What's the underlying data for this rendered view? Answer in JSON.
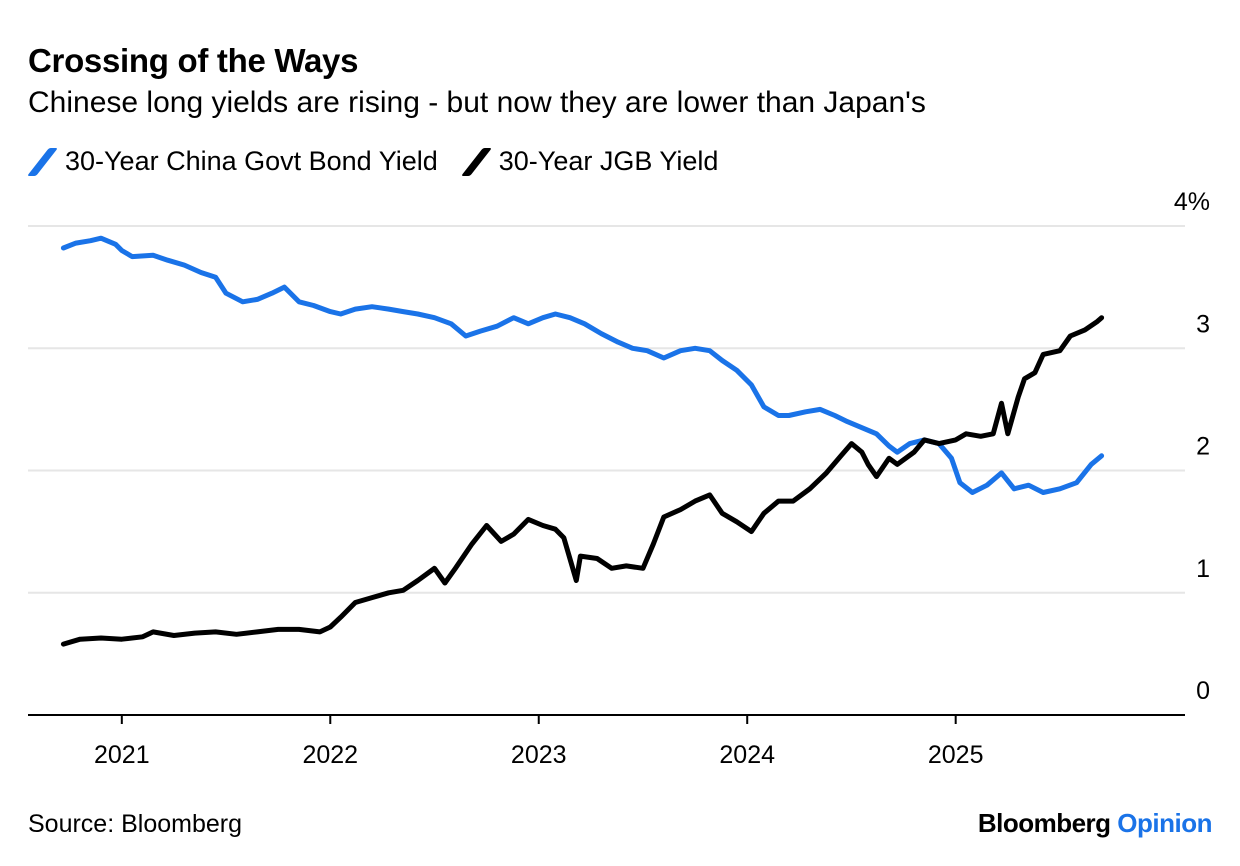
{
  "header": {
    "title": "Crossing of the Ways",
    "subtitle": "Chinese long yields are rising - but now they are lower than Japan's"
  },
  "legend": [
    {
      "label": "30-Year China Govt Bond Yield",
      "color": "#1a73e8"
    },
    {
      "label": "30-Year JGB Yield",
      "color": "#000000"
    }
  ],
  "footer": {
    "source": "Source: Bloomberg",
    "brand_main": "Bloomberg",
    "brand_accent": "Opinion"
  },
  "chart_data": {
    "type": "line",
    "title": "Crossing of the Ways",
    "subtitle": "Chinese long yields are rising - but now they are lower than Japan's",
    "x_range": [
      2020.55,
      2026.1
    ],
    "y_range": [
      0,
      4
    ],
    "y_axis_side": "right",
    "y_ticks": [
      0,
      1,
      2,
      3,
      4
    ],
    "y_tick_labels": [
      "0",
      "1",
      "2",
      "3",
      "4%"
    ],
    "x_ticks": [
      2021,
      2022,
      2023,
      2024,
      2025
    ],
    "x_tick_labels": [
      "2021",
      "2022",
      "2023",
      "2024",
      "2025"
    ],
    "grid": "horizontal",
    "legend_position": "top-left",
    "series": [
      {
        "name": "30-Year China Govt Bond Yield",
        "color": "#1a73e8",
        "x": [
          2020.72,
          2020.78,
          2020.85,
          2020.9,
          2020.97,
          2021.0,
          2021.05,
          2021.15,
          2021.22,
          2021.3,
          2021.38,
          2021.45,
          2021.5,
          2021.58,
          2021.65,
          2021.72,
          2021.78,
          2021.85,
          2021.92,
          2022.0,
          2022.05,
          2022.12,
          2022.2,
          2022.28,
          2022.35,
          2022.42,
          2022.5,
          2022.58,
          2022.65,
          2022.72,
          2022.8,
          2022.88,
          2022.95,
          2023.02,
          2023.08,
          2023.15,
          2023.22,
          2023.3,
          2023.38,
          2023.45,
          2023.52,
          2023.6,
          2023.68,
          2023.75,
          2023.82,
          2023.88,
          2023.95,
          2024.02,
          2024.08,
          2024.15,
          2024.2,
          2024.28,
          2024.35,
          2024.42,
          2024.48,
          2024.55,
          2024.62,
          2024.68,
          2024.72,
          2024.78,
          2024.85,
          2024.92,
          2024.98,
          2025.02,
          2025.08,
          2025.15,
          2025.22,
          2025.28,
          2025.35,
          2025.42,
          2025.5,
          2025.58,
          2025.65,
          2025.7
        ],
        "values": [
          3.82,
          3.86,
          3.88,
          3.9,
          3.85,
          3.8,
          3.75,
          3.76,
          3.72,
          3.68,
          3.62,
          3.58,
          3.45,
          3.38,
          3.4,
          3.45,
          3.5,
          3.38,
          3.35,
          3.3,
          3.28,
          3.32,
          3.34,
          3.32,
          3.3,
          3.28,
          3.25,
          3.2,
          3.1,
          3.14,
          3.18,
          3.25,
          3.2,
          3.25,
          3.28,
          3.25,
          3.2,
          3.12,
          3.05,
          3.0,
          2.98,
          2.92,
          2.98,
          3.0,
          2.98,
          2.9,
          2.82,
          2.7,
          2.52,
          2.45,
          2.45,
          2.48,
          2.5,
          2.45,
          2.4,
          2.35,
          2.3,
          2.2,
          2.15,
          2.22,
          2.25,
          2.22,
          2.1,
          1.9,
          1.82,
          1.88,
          1.98,
          1.85,
          1.88,
          1.82,
          1.85,
          1.9,
          2.05,
          2.12
        ]
      },
      {
        "name": "30-Year JGB Yield",
        "color": "#000000",
        "x": [
          2020.72,
          2020.8,
          2020.9,
          2021.0,
          2021.1,
          2021.15,
          2021.25,
          2021.35,
          2021.45,
          2021.55,
          2021.65,
          2021.75,
          2021.85,
          2021.95,
          2022.0,
          2022.05,
          2022.12,
          2022.2,
          2022.28,
          2022.35,
          2022.42,
          2022.5,
          2022.55,
          2022.6,
          2022.68,
          2022.75,
          2022.82,
          2022.88,
          2022.95,
          2023.02,
          2023.08,
          2023.12,
          2023.18,
          2023.2,
          2023.28,
          2023.35,
          2023.42,
          2023.5,
          2023.55,
          2023.6,
          2023.68,
          2023.75,
          2023.82,
          2023.88,
          2023.95,
          2024.02,
          2024.08,
          2024.15,
          2024.22,
          2024.3,
          2024.38,
          2024.45,
          2024.5,
          2024.55,
          2024.58,
          2024.62,
          2024.68,
          2024.72,
          2024.8,
          2024.85,
          2024.92,
          2025.0,
          2025.05,
          2025.12,
          2025.18,
          2025.22,
          2025.25,
          2025.3,
          2025.33,
          2025.38,
          2025.42,
          2025.5,
          2025.55,
          2025.62,
          2025.68,
          2025.7
        ],
        "values": [
          0.58,
          0.62,
          0.63,
          0.62,
          0.64,
          0.68,
          0.65,
          0.67,
          0.68,
          0.66,
          0.68,
          0.7,
          0.7,
          0.68,
          0.72,
          0.8,
          0.92,
          0.96,
          1.0,
          1.02,
          1.1,
          1.2,
          1.08,
          1.2,
          1.4,
          1.55,
          1.42,
          1.48,
          1.6,
          1.55,
          1.52,
          1.45,
          1.1,
          1.3,
          1.28,
          1.2,
          1.22,
          1.2,
          1.4,
          1.62,
          1.68,
          1.75,
          1.8,
          1.65,
          1.58,
          1.5,
          1.65,
          1.75,
          1.75,
          1.85,
          1.98,
          2.12,
          2.22,
          2.15,
          2.05,
          1.95,
          2.1,
          2.05,
          2.15,
          2.25,
          2.22,
          2.25,
          2.3,
          2.28,
          2.3,
          2.55,
          2.3,
          2.6,
          2.75,
          2.8,
          2.95,
          2.98,
          3.1,
          3.15,
          3.22,
          3.25
        ]
      }
    ]
  }
}
